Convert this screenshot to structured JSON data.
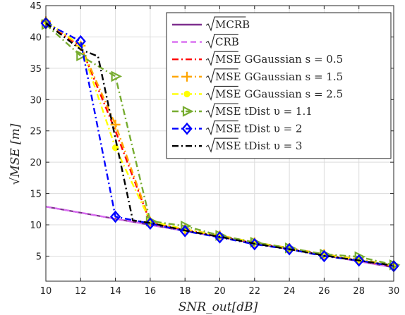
{
  "chart_data": {
    "type": "line",
    "xlabel": "SNR_out[dB]",
    "ylabel": "√MSE [m]",
    "xlim": [
      10,
      30
    ],
    "ylim": [
      1,
      45
    ],
    "xticks": [
      10,
      12,
      14,
      16,
      18,
      20,
      22,
      24,
      26,
      28,
      30
    ],
    "yticks": [
      5,
      10,
      15,
      20,
      25,
      30,
      35,
      40,
      45
    ],
    "grid": true,
    "legend_position": "top-right",
    "x": [
      10,
      12,
      14,
      16,
      18,
      20,
      22,
      24,
      26,
      28,
      30
    ],
    "series": [
      {
        "name": "√MCRB",
        "legend_main": "MCRB",
        "legend_suffix": "",
        "color": "#7E2F8E",
        "dash": "solid",
        "marker": "none",
        "x": [
          10,
          30
        ],
        "values": [
          12.9,
          3.2
        ]
      },
      {
        "name": "√CRB",
        "legend_main": "CRB",
        "legend_suffix": "",
        "color": "#D86BF0",
        "dash": "dash",
        "marker": "none",
        "x": [
          10,
          30
        ],
        "values": [
          12.9,
          3.2
        ]
      },
      {
        "name": "√MSE GGaussian s = 0.5",
        "legend_main": "MSE",
        "legend_suffix": "GGaussian s = 0.5",
        "color": "#FF0000",
        "dash": "dashdot",
        "marker": "none",
        "values": [
          42.2,
          38.5,
          25.0,
          10.4,
          9.2,
          8.2,
          7.1,
          6.2,
          5.2,
          4.3,
          3.4
        ]
      },
      {
        "name": "√MSE GGaussian s = 1.5",
        "legend_main": "MSE",
        "legend_suffix": "GGaussian s = 1.5",
        "color": "#FFA500",
        "dash": "dashdot",
        "marker": "plus",
        "values": [
          42.5,
          38.6,
          26.0,
          10.5,
          9.3,
          8.3,
          7.2,
          6.3,
          5.3,
          4.5,
          3.5
        ]
      },
      {
        "name": "√MSE GGaussian s = 2.5",
        "legend_main": "MSE",
        "legend_suffix": "GGaussian s = 2.5",
        "color": "#FFFF00",
        "dash": "dashdot",
        "marker": "circle",
        "values": [
          42.5,
          38.7,
          22.3,
          10.6,
          9.3,
          8.2,
          7.2,
          6.2,
          5.2,
          4.4,
          3.5
        ]
      },
      {
        "name": "√MSE tDist υ = 1.1",
        "legend_main": "MSE",
        "legend_suffix": "tDist υ = 1.1",
        "color": "#77AC30",
        "dash": "dashdot",
        "marker": "triangle-right",
        "values": [
          42.0,
          37.0,
          33.7,
          10.6,
          9.8,
          8.3,
          7.2,
          6.3,
          5.3,
          4.9,
          3.6
        ]
      },
      {
        "name": "√MSE tDist υ = 2",
        "legend_main": "MSE",
        "legend_suffix": "tDist υ = 2",
        "color": "#0000FF",
        "dash": "dashdot",
        "marker": "diamond",
        "values": [
          42.2,
          39.3,
          11.3,
          10.2,
          9.0,
          8.0,
          6.9,
          6.1,
          5.0,
          4.3,
          3.4
        ]
      },
      {
        "name": "√MSE tDist υ = 3",
        "legend_main": "MSE",
        "legend_suffix": "tDist υ = 3",
        "color": "#000000",
        "dash": "dashdot",
        "marker": "none",
        "x": [
          10,
          12,
          13,
          15,
          16,
          18,
          20,
          22,
          24,
          26,
          28,
          30
        ],
        "values": [
          42.2,
          38.0,
          36.9,
          10.7,
          10.3,
          9.1,
          8.1,
          7.0,
          6.1,
          5.1,
          4.3,
          3.5
        ]
      }
    ]
  }
}
